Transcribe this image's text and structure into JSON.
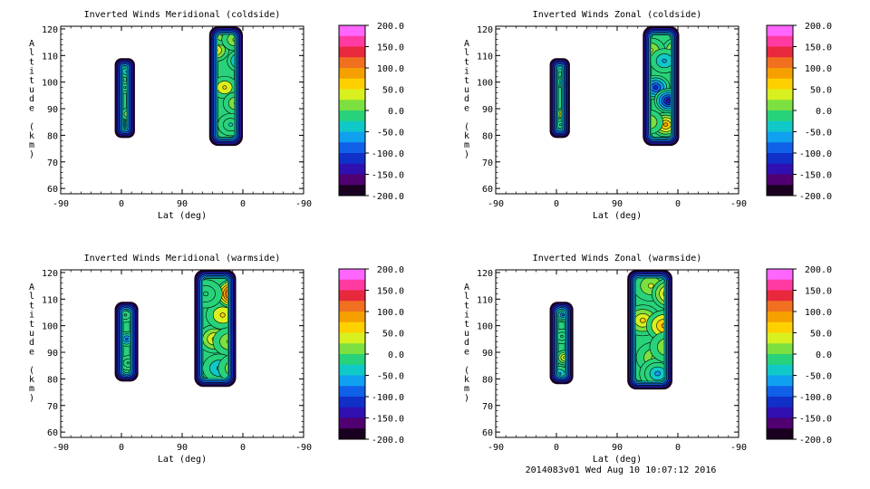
{
  "chart_data": [
    {
      "type": "heatmap",
      "title": "Inverted Winds Meridional (coldside)",
      "xlabel": "Lat (deg)",
      "ylabel": "Altitude (km)",
      "x_tick_labels": [
        "-90",
        "0",
        "90",
        "0",
        "-90"
      ],
      "y_ticks": [
        60,
        70,
        80,
        90,
        100,
        110,
        120
      ],
      "ylim": [
        58,
        121
      ],
      "colorbar": {
        "ticks": [
          "200.0",
          "150.0",
          "100.0",
          "50.0",
          "0.0",
          "-50.0",
          "-100.0",
          "-150.0",
          "-200.0"
        ],
        "range": [
          -200,
          200
        ]
      },
      "regions": [
        {
          "lat_range": [
            -10,
            20
          ],
          "alt_range": [
            79,
            109
          ],
          "blobs": [
            {
              "x": 5,
              "y": 98,
              "value": -25
            },
            {
              "x": 10,
              "y": 88,
              "value": 45
            },
            {
              "x": 8,
              "y": 104,
              "value": -60
            },
            {
              "x": 0,
              "y": 84,
              "value": -140
            }
          ]
        },
        {
          "side": "second",
          "lat_range": [
            130,
            180
          ],
          "alt_range": [
            76,
            121
          ],
          "blobs": [
            {
              "x": 140,
              "y": 112,
              "value": 65
            },
            {
              "x": 153,
              "y": 98,
              "value": 55
            },
            {
              "x": 170,
              "y": 92,
              "value": 40
            },
            {
              "x": 176,
              "y": 108,
              "value": -75
            },
            {
              "x": 162,
              "y": 84,
              "value": -40
            },
            {
              "x": 150,
              "y": 118,
              "value": 50
            },
            {
              "x": 168,
              "y": 116,
              "value": 15
            }
          ]
        }
      ]
    },
    {
      "type": "heatmap",
      "title": "Inverted Winds Zonal (coldside)",
      "xlabel": "Lat (deg)",
      "ylabel": "Altitude (km)",
      "x_tick_labels": [
        "-90",
        "0",
        "90",
        "0",
        "-90"
      ],
      "y_ticks": [
        60,
        70,
        80,
        90,
        100,
        110,
        120
      ],
      "ylim": [
        58,
        121
      ],
      "colorbar": {
        "ticks": [
          "200.0",
          "150.0",
          "100.0",
          "50.0",
          "0.0",
          "-50.0",
          "-100.0",
          "-150.0",
          "-200.0"
        ],
        "range": [
          -200,
          200
        ]
      },
      "regions": [
        {
          "lat_range": [
            -10,
            20
          ],
          "alt_range": [
            79,
            109
          ],
          "blobs": [
            {
              "x": 10,
              "y": 88,
              "value": 90
            },
            {
              "x": 10,
              "y": 100,
              "value": -95
            },
            {
              "x": 4,
              "y": 106,
              "value": -60
            },
            {
              "x": 6,
              "y": 84,
              "value": -30
            }
          ]
        },
        {
          "side": "second",
          "lat_range": [
            128,
            182
          ],
          "alt_range": [
            76,
            121
          ],
          "blobs": [
            {
              "x": 162,
              "y": 84,
              "value": 95
            },
            {
              "x": 147,
              "y": 98,
              "value": -110
            },
            {
              "x": 166,
              "y": 93,
              "value": -130
            },
            {
              "x": 178,
              "y": 112,
              "value": 70
            },
            {
              "x": 140,
              "y": 112,
              "value": 35
            },
            {
              "x": 160,
              "y": 108,
              "value": -55
            },
            {
              "x": 137,
              "y": 85,
              "value": 25
            }
          ]
        }
      ]
    },
    {
      "type": "heatmap",
      "title": "Inverted Winds Meridional (warmside)",
      "xlabel": "Lat (deg)",
      "ylabel": "Altitude (km)",
      "x_tick_labels": [
        "-90",
        "0",
        "90",
        "0",
        "-90"
      ],
      "y_ticks": [
        60,
        70,
        80,
        90,
        100,
        110,
        120
      ],
      "ylim": [
        58,
        121
      ],
      "colorbar": {
        "ticks": [
          "200.0",
          "150.0",
          "100.0",
          "50.0",
          "0.0",
          "-50.0",
          "-100.0",
          "-150.0",
          "-200.0"
        ],
        "range": [
          -200,
          200
        ]
      },
      "regions": [
        {
          "lat_range": [
            -10,
            25
          ],
          "alt_range": [
            79,
            109
          ],
          "blobs": [
            {
              "x": 8,
              "y": 95,
              "value": -80
            },
            {
              "x": 10,
              "y": 86,
              "value": -10
            },
            {
              "x": 6,
              "y": 104,
              "value": -45
            }
          ]
        },
        {
          "side": "second",
          "lat_range": [
            108,
            170
          ],
          "alt_range": [
            77,
            121
          ],
          "blobs": [
            {
              "x": 138,
              "y": 95,
              "value": 70
            },
            {
              "x": 150,
              "y": 104,
              "value": 55
            },
            {
              "x": 165,
              "y": 112,
              "value": 160
            },
            {
              "x": 160,
              "y": 94,
              "value": 45
            },
            {
              "x": 125,
              "y": 112,
              "value": -20
            },
            {
              "x": 145,
              "y": 84,
              "value": -60
            },
            {
              "x": 168,
              "y": 84,
              "value": 30
            }
          ]
        }
      ]
    },
    {
      "type": "heatmap",
      "title": "Inverted Winds Zonal (warmside)",
      "xlabel": "Lat (deg)",
      "ylabel": "Altitude (km)",
      "x_tick_labels": [
        "-90",
        "0",
        "90",
        "0",
        "-90"
      ],
      "y_ticks": [
        60,
        70,
        80,
        90,
        100,
        110,
        120
      ],
      "ylim": [
        58,
        121
      ],
      "colorbar": {
        "ticks": [
          "200.0",
          "150.0",
          "100.0",
          "50.0",
          "0.0",
          "-50.0",
          "-100.0",
          "-150.0",
          "-200.0"
        ],
        "range": [
          -200,
          200
        ]
      },
      "regions": [
        {
          "lat_range": [
            -10,
            25
          ],
          "alt_range": [
            78,
            109
          ],
          "blobs": [
            {
              "x": 12,
              "y": 88,
              "value": 65
            },
            {
              "x": 10,
              "y": 104,
              "value": -90
            },
            {
              "x": 8,
              "y": 96,
              "value": -15
            },
            {
              "x": 5,
              "y": 82,
              "value": -60
            }
          ]
        },
        {
          "side": "second",
          "lat_range": [
            105,
            172
          ],
          "alt_range": [
            76,
            121
          ],
          "blobs": [
            {
              "x": 128,
              "y": 102,
              "value": 65
            },
            {
              "x": 160,
              "y": 100,
              "value": 80
            },
            {
              "x": 140,
              "y": 115,
              "value": 40
            },
            {
              "x": 168,
              "y": 112,
              "value": 90
            },
            {
              "x": 145,
              "y": 88,
              "value": 10
            },
            {
              "x": 150,
              "y": 82,
              "value": -70
            },
            {
              "x": 165,
              "y": 92,
              "value": 30
            }
          ]
        }
      ]
    }
  ],
  "footer": "2014083v01 Wed Aug 10 10:07:12 2016"
}
